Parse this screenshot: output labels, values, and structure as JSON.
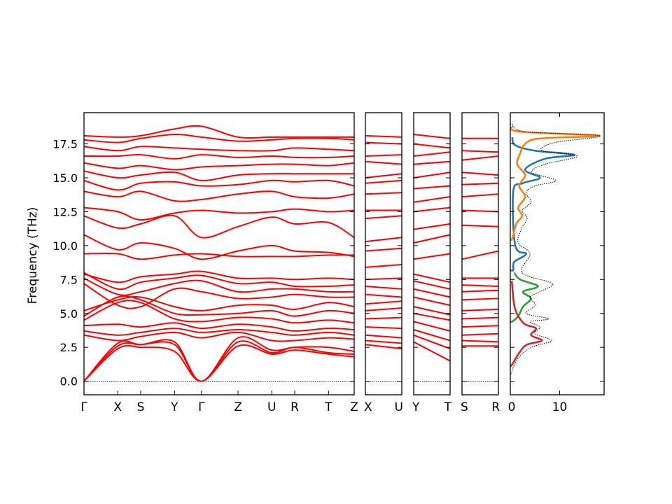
{
  "chart_data": {
    "type": "line",
    "title": "",
    "ylabel": "Frequency (THz)",
    "ylim": [
      -1.0,
      19.8
    ],
    "yticks": [
      "0.0",
      "2.5",
      "5.0",
      "7.5",
      "10.0",
      "12.5",
      "15.0",
      "17.5"
    ],
    "ytick_values": [
      0,
      2.5,
      5,
      7.5,
      10,
      12.5,
      15,
      17.5
    ],
    "band_color": "#ff0000",
    "zero_line_color": "#0000cc",
    "band_segments": [
      {
        "name": "Γ-X-S-Y-Γ-Z-U-R-T-Z",
        "kpoints": [
          "Γ",
          "X",
          "S",
          "Y",
          "Γ",
          "Z",
          "U",
          "R",
          "T",
          "Z"
        ],
        "kpos": [
          0,
          0.125,
          0.21,
          0.335,
          0.435,
          0.57,
          0.695,
          0.78,
          0.905,
          1.0
        ],
        "bands": [
          [
            0,
            2.8,
            2.7,
            2.9,
            0,
            3.2,
            2.3,
            2.5,
            2.5,
            2.2
          ],
          [
            0,
            2.6,
            2.7,
            2.7,
            0,
            2.9,
            2.1,
            2.5,
            2.1,
            2.0
          ],
          [
            0,
            2.4,
            2.5,
            2.2,
            0,
            2.6,
            2.0,
            2.3,
            2.0,
            1.8
          ],
          [
            3.4,
            3.0,
            3.3,
            3.6,
            3.2,
            3.6,
            3.0,
            3.0,
            3.2,
            3.1
          ],
          [
            3.7,
            3.4,
            3.6,
            3.9,
            3.6,
            3.8,
            3.6,
            3.4,
            3.6,
            3.4
          ],
          [
            4.1,
            4.2,
            4.0,
            4.3,
            3.9,
            4.2,
            4.0,
            3.7,
            3.9,
            3.8
          ],
          [
            4.5,
            5.8,
            5.8,
            4.6,
            4.4,
            4.7,
            4.6,
            4.3,
            4.5,
            4.3
          ],
          [
            4.8,
            6.2,
            6.0,
            5.0,
            4.9,
            5.0,
            5.2,
            4.8,
            5.2,
            5.0
          ],
          [
            5.2,
            6.0,
            6.2,
            5.5,
            5.2,
            5.6,
            5.6,
            5.3,
            5.8,
            5.5
          ],
          [
            7.2,
            5.6,
            5.5,
            6.8,
            6.6,
            6.1,
            6.2,
            6.4,
            6.2,
            6.2
          ],
          [
            7.6,
            6.4,
            6.6,
            7.2,
            7.4,
            6.6,
            6.8,
            6.8,
            6.6,
            6.6
          ],
          [
            8.0,
            6.8,
            7.3,
            7.6,
            7.8,
            7.2,
            7.3,
            7.0,
            7.0,
            7.1
          ],
          [
            7.9,
            7.3,
            7.7,
            7.9,
            8.1,
            7.6,
            7.6,
            7.5,
            7.6,
            7.5
          ],
          [
            9.4,
            9.4,
            9.0,
            9.3,
            9.4,
            9.2,
            9.2,
            9.2,
            9.3,
            9.3
          ],
          [
            10.8,
            9.7,
            10.2,
            9.8,
            9.0,
            9.6,
            10.0,
            9.6,
            9.5,
            9.2
          ],
          [
            12.2,
            11.3,
            11.6,
            12.2,
            10.6,
            11.4,
            12.1,
            11.6,
            11.7,
            10.6
          ],
          [
            12.8,
            12.5,
            11.9,
            12.4,
            12.6,
            12.4,
            12.5,
            12.7,
            12.5,
            12.6
          ],
          [
            14.0,
            13.6,
            14.0,
            13.3,
            13.4,
            13.8,
            14.0,
            13.6,
            13.5,
            13.8
          ],
          [
            14.8,
            14.1,
            14.6,
            14.7,
            14.4,
            14.5,
            14.8,
            14.7,
            14.8,
            14.4
          ],
          [
            15.5,
            15.0,
            15.2,
            15.4,
            14.8,
            15.2,
            15.3,
            15.3,
            15.3,
            15.3
          ],
          [
            16.1,
            15.7,
            15.9,
            15.6,
            15.8,
            15.9,
            16.0,
            16.0,
            15.9,
            16.1
          ],
          [
            16.6,
            16.6,
            16.7,
            16.4,
            16.7,
            16.5,
            16.6,
            16.5,
            16.5,
            16.6
          ],
          [
            17.3,
            17.0,
            17.3,
            17.2,
            17.1,
            17.0,
            17.0,
            17.2,
            17.1,
            17.0
          ],
          [
            17.8,
            17.6,
            17.9,
            18.2,
            18.0,
            17.7,
            17.8,
            17.9,
            17.9,
            17.8
          ],
          [
            18.1,
            18.0,
            18.1,
            18.6,
            18.8,
            18.0,
            18.0,
            18.0,
            18.0,
            18.0
          ]
        ]
      },
      {
        "name": "X-U",
        "kpoints": [
          "X",
          "U"
        ],
        "kpos": [
          0,
          1
        ],
        "bands": [
          [
            2.7,
            2.4
          ],
          [
            3.0,
            2.8
          ],
          [
            3.4,
            3.2
          ],
          [
            4.0,
            3.9
          ],
          [
            4.6,
            4.7
          ],
          [
            5.2,
            5.4
          ],
          [
            5.7,
            5.9
          ],
          [
            6.4,
            6.2
          ],
          [
            7.0,
            6.8
          ],
          [
            7.5,
            7.6
          ],
          [
            8.4,
            8.6
          ],
          [
            9.6,
            9.8
          ],
          [
            10.3,
            10.6
          ],
          [
            12.0,
            12.2
          ],
          [
            12.6,
            12.6
          ],
          [
            13.8,
            13.9
          ],
          [
            14.6,
            14.8
          ],
          [
            15.0,
            15.3
          ],
          [
            16.2,
            16.0
          ],
          [
            16.6,
            16.7
          ],
          [
            17.6,
            17.5
          ],
          [
            18.1,
            18.0
          ]
        ]
      },
      {
        "name": "Y-T",
        "kpoints": [
          "Y",
          "T"
        ],
        "kpos": [
          0,
          1
        ],
        "bands": [
          [
            2.9,
            1.5
          ],
          [
            3.4,
            2.4
          ],
          [
            3.8,
            3.0
          ],
          [
            4.4,
            3.7
          ],
          [
            5.0,
            4.5
          ],
          [
            5.5,
            4.9
          ],
          [
            6.2,
            5.6
          ],
          [
            6.8,
            6.2
          ],
          [
            7.4,
            6.8
          ],
          [
            7.9,
            7.3
          ],
          [
            9.0,
            9.4
          ],
          [
            10.2,
            10.8
          ],
          [
            11.2,
            11.6
          ],
          [
            12.5,
            12.8
          ],
          [
            13.2,
            13.6
          ],
          [
            14.2,
            14.4
          ],
          [
            15.0,
            15.4
          ],
          [
            16.0,
            16.2
          ],
          [
            16.6,
            16.9
          ],
          [
            17.5,
            17.2
          ],
          [
            18.2,
            17.9
          ]
        ]
      },
      {
        "name": "S-R",
        "kpoints": [
          "S",
          "R"
        ],
        "kpos": [
          0,
          1
        ],
        "bands": [
          [
            2.6,
            2.6
          ],
          [
            3.0,
            2.9
          ],
          [
            3.4,
            3.5
          ],
          [
            4.0,
            4.1
          ],
          [
            4.6,
            4.7
          ],
          [
            5.2,
            5.3
          ],
          [
            6.0,
            6.1
          ],
          [
            6.6,
            6.7
          ],
          [
            7.1,
            7.0
          ],
          [
            7.6,
            7.6
          ],
          [
            9.0,
            9.6
          ],
          [
            11.5,
            11.4
          ],
          [
            12.6,
            12.5
          ],
          [
            13.6,
            13.8
          ],
          [
            14.5,
            14.6
          ],
          [
            15.4,
            15.2
          ],
          [
            16.3,
            16.6
          ],
          [
            17.0,
            16.9
          ],
          [
            17.9,
            17.9
          ]
        ]
      }
    ],
    "dos": {
      "xlabel_ticks": [
        "0",
        "10"
      ],
      "xtick_values": [
        0,
        10
      ],
      "xlim": [
        0,
        19
      ],
      "total_color": "#000000",
      "series": [
        {
          "color": "#1f77b4",
          "points": [
            [
              0.6,
              8.2
            ],
            [
              0.8,
              8.8
            ],
            [
              3.2,
              9.4
            ],
            [
              1.0,
              10.0
            ],
            [
              0.6,
              14.0
            ],
            [
              2.5,
              14.6
            ],
            [
              6.0,
              15.0
            ],
            [
              3.0,
              15.6
            ],
            [
              7.0,
              16.4
            ],
            [
              13.0,
              16.7
            ],
            [
              5.0,
              17.0
            ],
            [
              1.0,
              17.4
            ],
            [
              0.4,
              18.0
            ]
          ]
        },
        {
          "color": "#ff7f0e",
          "points": [
            [
              0.4,
              10.5
            ],
            [
              1.2,
              11.6
            ],
            [
              2.4,
              12.2
            ],
            [
              1.6,
              12.8
            ],
            [
              3.0,
              13.6
            ],
            [
              1.8,
              14.4
            ],
            [
              3.0,
              15.2
            ],
            [
              1.4,
              16.0
            ],
            [
              2.0,
              16.8
            ],
            [
              3.0,
              17.5
            ],
            [
              6.0,
              17.9
            ],
            [
              18.0,
              18.1
            ],
            [
              2.0,
              18.4
            ],
            [
              0.3,
              18.8
            ]
          ]
        },
        {
          "color": "#2ca02c",
          "points": [
            [
              0.4,
              4.4
            ],
            [
              1.6,
              4.8
            ],
            [
              2.6,
              5.5
            ],
            [
              4.2,
              6.1
            ],
            [
              2.6,
              6.6
            ],
            [
              5.6,
              7.0
            ],
            [
              2.0,
              7.5
            ],
            [
              0.8,
              8.0
            ]
          ]
        },
        {
          "color": "#d62728",
          "points": [
            [
              0.3,
              1.2
            ],
            [
              2.0,
              2.2
            ],
            [
              3.4,
              2.7
            ],
            [
              6.4,
              3.0
            ],
            [
              4.2,
              3.4
            ],
            [
              5.2,
              3.9
            ],
            [
              3.0,
              4.2
            ],
            [
              1.6,
              4.8
            ],
            [
              0.8,
              5.6
            ],
            [
              0.5,
              6.6
            ],
            [
              0.3,
              7.4
            ]
          ]
        }
      ],
      "total": [
        [
          0.1,
          0.5
        ],
        [
          1.2,
          1.5
        ],
        [
          3.0,
          2.2
        ],
        [
          5.0,
          2.6
        ],
        [
          8.4,
          3.0
        ],
        [
          5.0,
          3.5
        ],
        [
          6.0,
          4.0
        ],
        [
          4.0,
          4.4
        ],
        [
          7.8,
          4.6
        ],
        [
          3.2,
          5.0
        ],
        [
          5.0,
          5.6
        ],
        [
          4.0,
          6.2
        ],
        [
          6.0,
          6.6
        ],
        [
          8.6,
          7.2
        ],
        [
          4.0,
          7.7
        ],
        [
          2.2,
          8.2
        ],
        [
          4.0,
          9.4
        ],
        [
          1.6,
          10.2
        ],
        [
          2.2,
          11.2
        ],
        [
          3.4,
          12.0
        ],
        [
          2.4,
          12.6
        ],
        [
          4.2,
          13.2
        ],
        [
          3.2,
          13.9
        ],
        [
          5.0,
          14.4
        ],
        [
          9.2,
          14.8
        ],
        [
          4.4,
          15.4
        ],
        [
          7.0,
          16.0
        ],
        [
          13.6,
          16.6
        ],
        [
          6.4,
          17.0
        ],
        [
          9.0,
          17.6
        ],
        [
          18.2,
          18.1
        ],
        [
          3.0,
          18.4
        ],
        [
          0.3,
          19.0
        ]
      ]
    }
  }
}
